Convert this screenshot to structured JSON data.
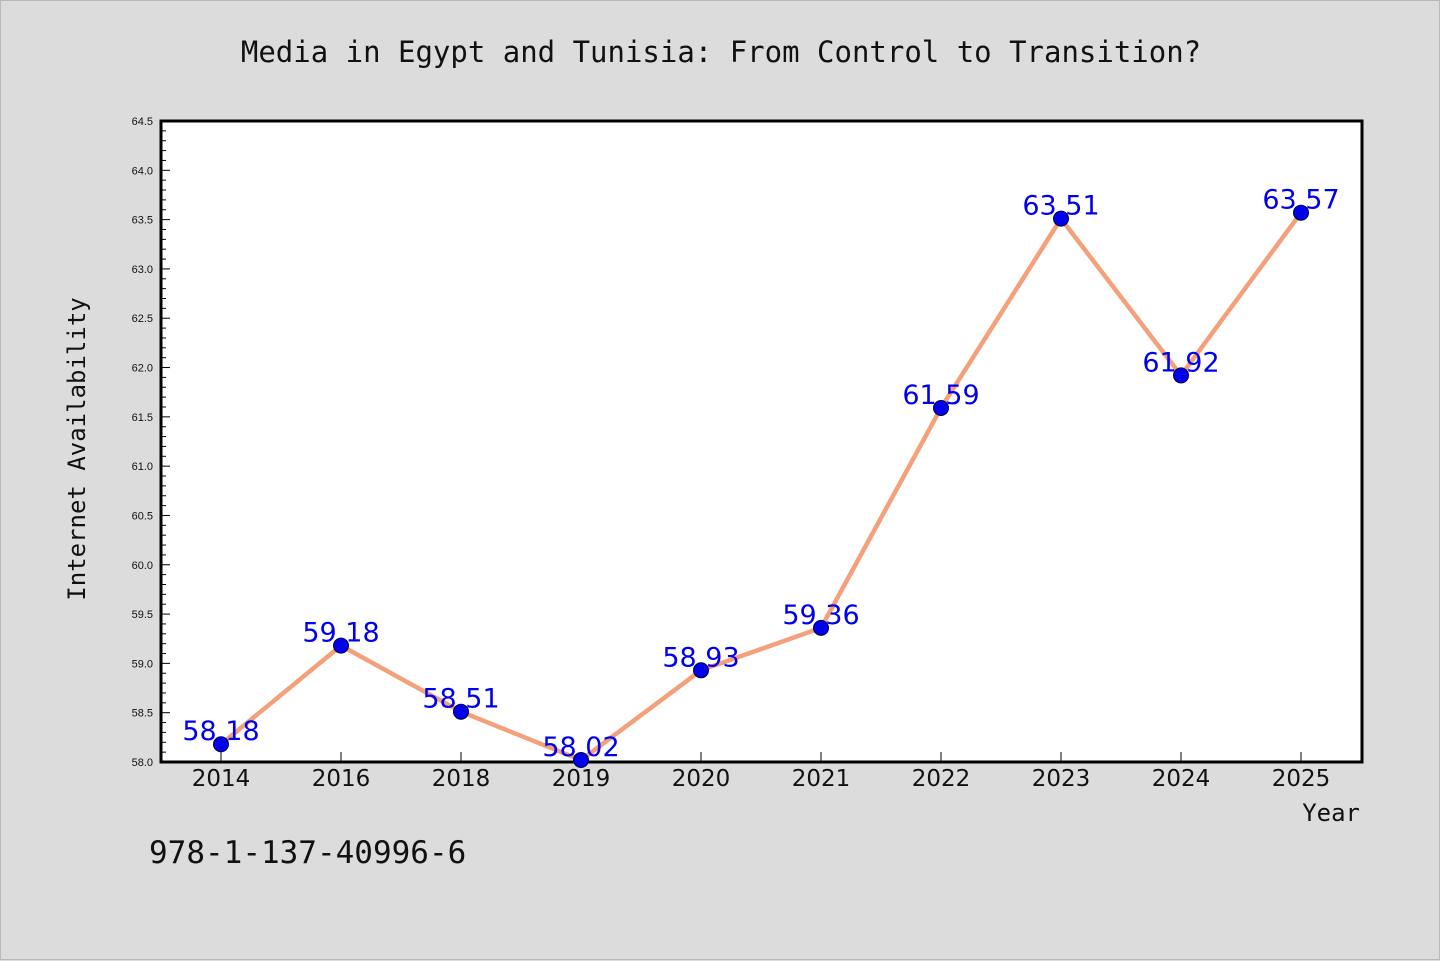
{
  "chart_data": {
    "type": "line",
    "title": "Media in Egypt and Tunisia: From Control to Transition?",
    "xlabel": "Year",
    "ylabel": "Internet Availability",
    "categories": [
      "2014",
      "2016",
      "2018",
      "2019",
      "2020",
      "2021",
      "2022",
      "2023",
      "2024",
      "2025"
    ],
    "series": [
      {
        "values": [
          58.18,
          59.18,
          58.51,
          58.02,
          58.93,
          59.36,
          61.59,
          63.51,
          61.92,
          63.57
        ]
      }
    ],
    "data_labels": [
      "58.18",
      "59.18",
      "58.51",
      "58.02",
      "58.93",
      "59.36",
      "61.59",
      "63.51",
      "61.92",
      "63.57"
    ],
    "ylim": [
      58.0,
      64.5
    ],
    "y_ticks": [
      "58.0",
      "58.5",
      "59.0",
      "59.5",
      "60.0",
      "60.5",
      "61.0",
      "61.5",
      "62.0",
      "62.5",
      "63.0",
      "63.5",
      "64.0",
      "64.5"
    ],
    "grid": false,
    "legend": "none",
    "colors": {
      "line": "#f4a07a",
      "marker": "#0000ee",
      "label": "#0000ee",
      "background": "#dcdcdc",
      "plot_area": "#ffffff"
    }
  },
  "annotation": "978-1-137-40996-6"
}
